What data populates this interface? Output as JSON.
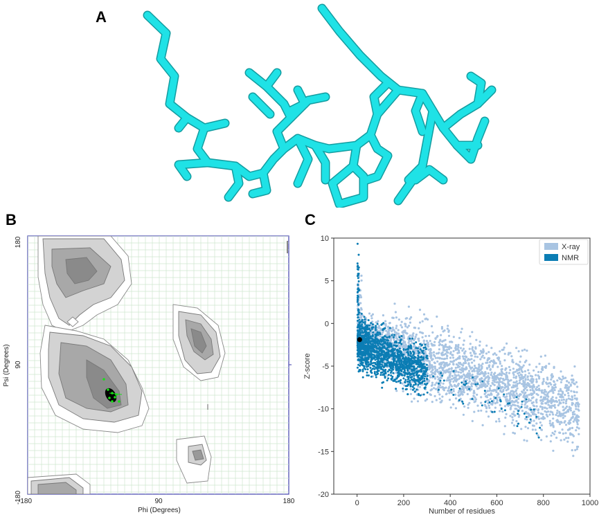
{
  "panels": {
    "a": "A",
    "b": "B",
    "c": "C"
  },
  "colors": {
    "stick": "#1fe2e6",
    "stick_dark": "#139ca0",
    "xray": "#a8c4e2",
    "nmr": "#0b7db4",
    "frame_blue": "#5a5ab8",
    "green_point": "#19e019"
  },
  "ramachandran": {
    "type": "contour",
    "xlabel": "Phi (Degrees)",
    "ylabel": "Psi (Degrees)",
    "xticks": [
      "-180",
      "90",
      "180"
    ],
    "yticks": [
      "180",
      "90",
      "-180"
    ],
    "xlim": [
      -180,
      180
    ],
    "ylim": [
      -180,
      180
    ],
    "grid": true
  },
  "chart_data": {
    "type": "scatter",
    "xlabel": "Number of residues",
    "ylabel": "Z-score",
    "xlim": [
      -100,
      1000
    ],
    "ylim": [
      -20,
      10
    ],
    "xticks": [
      "0",
      "200",
      "400",
      "600",
      "800",
      "1000"
    ],
    "yticks": [
      "10",
      "5",
      "0",
      "-5",
      "-10",
      "-15",
      "-20"
    ],
    "legend_position": "top-right",
    "series": [
      {
        "name": "X-ray",
        "color": "#a8c4e2"
      },
      {
        "name": "NMR",
        "color": "#0b7db4"
      }
    ],
    "highlight_point": {
      "x": 11,
      "y": -1.9
    }
  }
}
